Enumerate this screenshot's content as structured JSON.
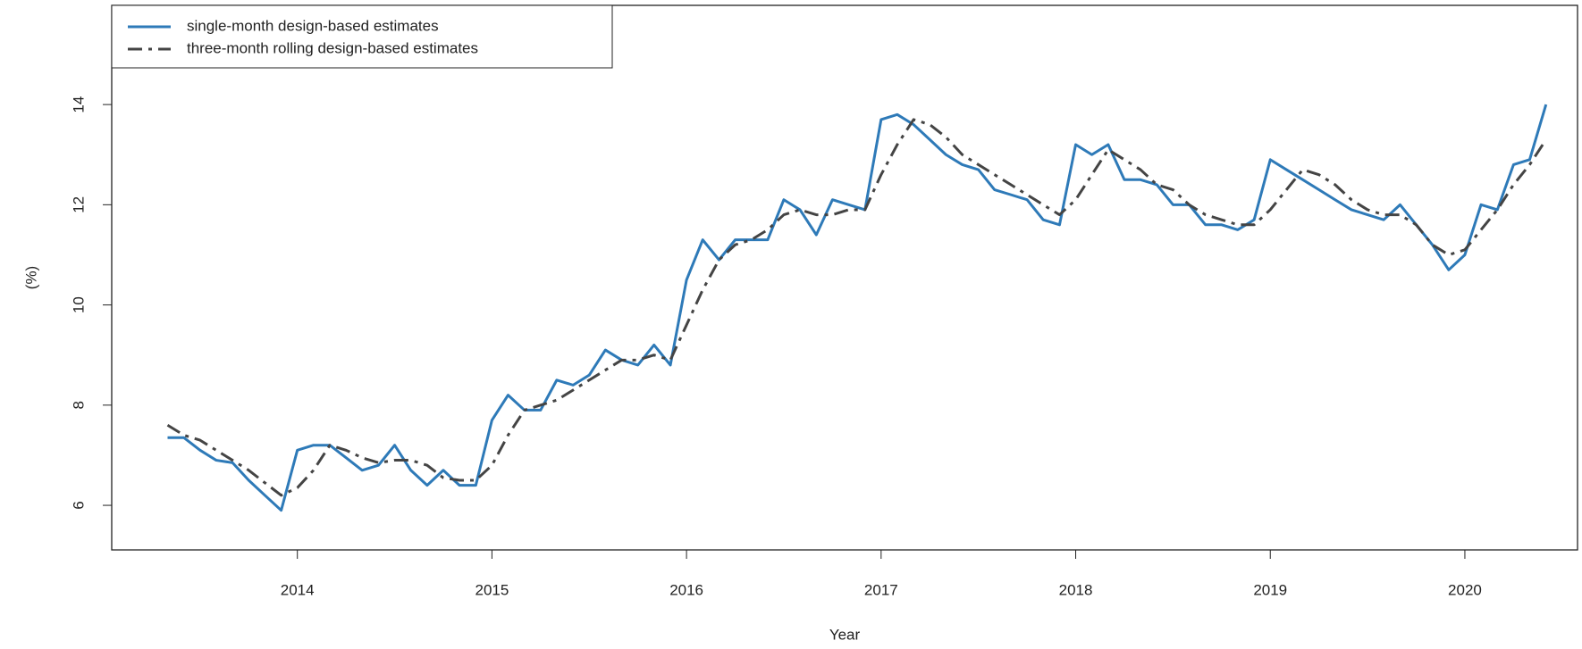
{
  "chart_data": {
    "type": "line",
    "x_label": "Year",
    "y_label": "(%)",
    "x": [
      2013.333,
      2013.417,
      2013.5,
      2013.583,
      2013.667,
      2013.75,
      2013.833,
      2013.917,
      2014,
      2014.083,
      2014.167,
      2014.25,
      2014.333,
      2014.417,
      2014.5,
      2014.583,
      2014.667,
      2014.75,
      2014.833,
      2014.917,
      2015,
      2015.083,
      2015.167,
      2015.25,
      2015.333,
      2015.417,
      2015.5,
      2015.583,
      2015.667,
      2015.75,
      2015.833,
      2015.917,
      2016,
      2016.083,
      2016.167,
      2016.25,
      2016.333,
      2016.417,
      2016.5,
      2016.583,
      2016.667,
      2016.75,
      2016.833,
      2016.917,
      2017,
      2017.083,
      2017.167,
      2017.25,
      2017.333,
      2017.417,
      2017.5,
      2017.583,
      2017.667,
      2017.75,
      2017.833,
      2017.917,
      2018,
      2018.083,
      2018.167,
      2018.25,
      2018.333,
      2018.417,
      2018.5,
      2018.583,
      2018.667,
      2018.75,
      2018.833,
      2018.917,
      2019,
      2019.083,
      2019.167,
      2019.25,
      2019.333,
      2019.417,
      2019.5,
      2019.583,
      2019.667,
      2019.75,
      2019.833,
      2019.917,
      2020,
      2020.083,
      2020.167,
      2020.25,
      2020.333,
      2020.417
    ],
    "series": [
      {
        "name": "single-month design-based estimates",
        "color": "#2e7ab8",
        "dash": "solid",
        "values": [
          7.35,
          7.35,
          7.1,
          6.9,
          6.85,
          6.5,
          6.2,
          5.9,
          7.1,
          7.2,
          7.2,
          6.95,
          6.7,
          6.8,
          7.2,
          6.7,
          6.4,
          6.7,
          6.4,
          6.4,
          7.7,
          8.2,
          7.9,
          7.9,
          8.5,
          8.4,
          8.6,
          9.1,
          8.9,
          8.8,
          9.2,
          8.8,
          10.5,
          11.3,
          10.9,
          11.3,
          11.3,
          11.3,
          12.1,
          11.9,
          11.4,
          12.1,
          12.0,
          11.9,
          13.7,
          13.8,
          13.6,
          13.3,
          13.0,
          12.8,
          12.7,
          12.3,
          12.2,
          12.1,
          11.7,
          11.6,
          13.2,
          13.0,
          13.2,
          12.5,
          12.5,
          12.4,
          12.0,
          12.0,
          11.6,
          11.6,
          11.5,
          11.7,
          12.9,
          12.7,
          12.5,
          12.3,
          12.1,
          11.9,
          11.8,
          11.7,
          12.0,
          11.6,
          11.2,
          10.7,
          11.0,
          12.0,
          11.9,
          12.8,
          12.9,
          14.0
        ]
      },
      {
        "name": "three-month rolling design-based estimates",
        "color": "#444444",
        "dash": "dashdot",
        "values": [
          7.6,
          7.4,
          7.3,
          7.1,
          6.9,
          6.7,
          6.45,
          6.2,
          6.35,
          6.7,
          7.2,
          7.1,
          6.95,
          6.85,
          6.9,
          6.9,
          6.8,
          6.55,
          6.5,
          6.5,
          6.8,
          7.4,
          7.9,
          8.0,
          8.1,
          8.3,
          8.5,
          8.7,
          8.9,
          8.9,
          9.0,
          8.9,
          9.6,
          10.3,
          10.9,
          11.2,
          11.3,
          11.5,
          11.8,
          11.9,
          11.8,
          11.8,
          11.9,
          11.9,
          12.6,
          13.2,
          13.7,
          13.6,
          13.35,
          13.0,
          12.8,
          12.6,
          12.4,
          12.2,
          12.0,
          11.8,
          12.1,
          12.6,
          13.1,
          12.9,
          12.7,
          12.4,
          12.3,
          12.0,
          11.8,
          11.7,
          11.6,
          11.6,
          11.9,
          12.3,
          12.7,
          12.6,
          12.4,
          12.1,
          11.9,
          11.8,
          11.8,
          11.6,
          11.2,
          11.0,
          11.1,
          11.5,
          11.9,
          12.4,
          12.8,
          13.3
        ]
      }
    ],
    "xlim": [
      2013.046,
      2020.579
    ],
    "ylim": [
      5.11,
      15.98
    ],
    "xticks": [
      2014,
      2015,
      2016,
      2017,
      2018,
      2019,
      2020
    ],
    "yticks": [
      6,
      8,
      10,
      12,
      14
    ],
    "legend": "top-left",
    "grid": false
  }
}
